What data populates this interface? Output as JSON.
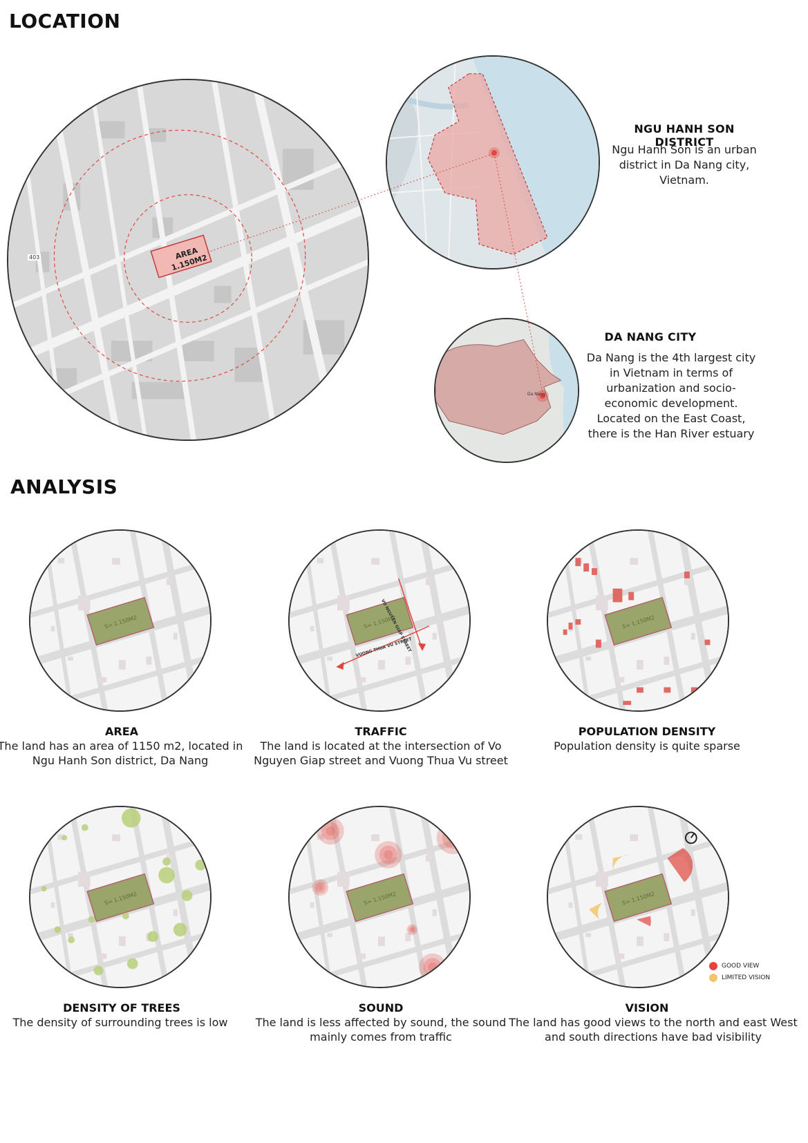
{
  "sections": {
    "location": "LOCATION",
    "analysis": "ANALYSIS"
  },
  "location": {
    "area_label_1": "AREA",
    "area_label_2": "1.150M2",
    "road_badge": "403",
    "district": {
      "title": "NGU HANH SON DISTRICT",
      "text": "Ngu Hanh Son is an urban district in Da Nang city, Vietnam."
    },
    "city": {
      "title": "DA NANG CITY",
      "text": "Da Nang is the 4th largest city in Vietnam in terms of urbanization and socio-economic development. Located on the East Coast, there is the Han River estuary",
      "map_label": "Da Nang"
    }
  },
  "analysis": {
    "site_label": "S= 1.150M2",
    "streets": {
      "vertical": "VO NGUYEN GIAP STREET",
      "horizontal": "VUONG THUA VU STREET"
    },
    "items": [
      {
        "title": "AREA",
        "text": "The land has an area of 1150 m2, located in Ngu Hanh Son district, Da Nang"
      },
      {
        "title": "TRAFFIC",
        "text": "The land is located at the intersection of Vo Nguyen Giap street and Vuong Thua Vu street"
      },
      {
        "title": "POPULATION DENSITY",
        "text": "Population density is quite sparse"
      },
      {
        "title": "DENSITY OF TREES",
        "text": "The density of surrounding trees is low"
      },
      {
        "title": "SOUND",
        "text": "The land is less affected by sound, the sound mainly comes from traffic"
      },
      {
        "title": "VISION",
        "text": "The land has good views to the north and east West and south directions have bad visibility"
      }
    ],
    "legend": {
      "good": "GOOD VIEW",
      "limited": "LIMITED VISION"
    }
  },
  "colors": {
    "site_fill": "#9aa56b",
    "accent_red": "#e0463f",
    "pale_red": "#e9a8a4",
    "tree_green": "#b9cf7a",
    "vision_yellow": "#f4c36a"
  }
}
